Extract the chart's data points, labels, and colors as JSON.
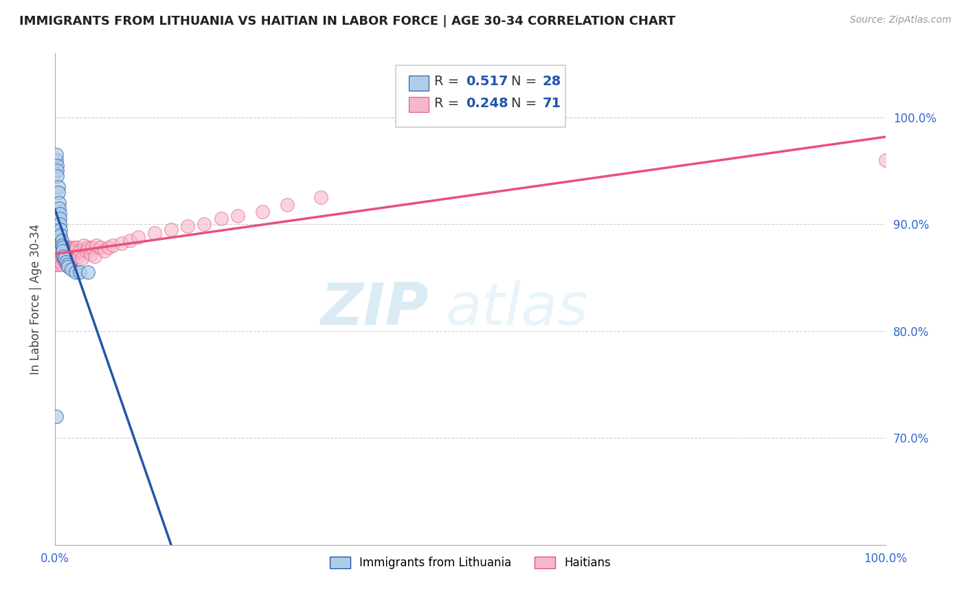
{
  "title": "IMMIGRANTS FROM LITHUANIA VS HAITIAN IN LABOR FORCE | AGE 30-34 CORRELATION CHART",
  "source": "Source: ZipAtlas.com",
  "ylabel": "In Labor Force | Age 30-34",
  "legend_label_1": "Immigrants from Lithuania",
  "legend_label_2": "Haitians",
  "r1": 0.517,
  "n1": 28,
  "r2": 0.248,
  "n2": 71,
  "color1": "#aecde8",
  "color2": "#f5b8cb",
  "line_color1": "#2255aa",
  "line_color2": "#e8507a",
  "background_color": "#ffffff",
  "grid_color": "#cccccc",
  "title_color": "#222222",
  "source_color": "#999999",
  "r_color": "#2255aa",
  "n_color": "#2255aa",
  "xlim": [
    0.0,
    1.0
  ],
  "ylim": [
    0.6,
    1.06
  ],
  "xtick_labels": [
    "0.0%",
    "",
    "",
    "",
    "",
    "100.0%"
  ],
  "xtick_vals": [
    0.0,
    0.2,
    0.4,
    0.6,
    0.8,
    1.0
  ],
  "ytick_right_labels": [
    "100.0%",
    "90.0%",
    "80.0%",
    "70.0%"
  ],
  "ytick_right_vals": [
    1.0,
    0.9,
    0.8,
    0.7
  ],
  "lithuania_x": [
    0.002,
    0.002,
    0.003,
    0.003,
    0.003,
    0.004,
    0.004,
    0.005,
    0.005,
    0.006,
    0.006,
    0.006,
    0.007,
    0.007,
    0.008,
    0.008,
    0.009,
    0.009,
    0.01,
    0.012,
    0.013,
    0.015,
    0.016,
    0.02,
    0.025,
    0.03,
    0.04,
    0.002
  ],
  "lithuania_y": [
    0.96,
    0.965,
    0.955,
    0.95,
    0.945,
    0.935,
    0.93,
    0.92,
    0.915,
    0.91,
    0.905,
    0.9,
    0.895,
    0.89,
    0.885,
    0.88,
    0.878,
    0.875,
    0.87,
    0.868,
    0.865,
    0.862,
    0.86,
    0.858,
    0.855,
    0.855,
    0.855,
    0.72
  ],
  "haitian_x": [
    0.001,
    0.001,
    0.002,
    0.002,
    0.002,
    0.003,
    0.003,
    0.004,
    0.004,
    0.004,
    0.005,
    0.005,
    0.006,
    0.006,
    0.007,
    0.007,
    0.008,
    0.008,
    0.009,
    0.009,
    0.01,
    0.01,
    0.011,
    0.011,
    0.012,
    0.012,
    0.013,
    0.013,
    0.014,
    0.015,
    0.015,
    0.016,
    0.016,
    0.017,
    0.018,
    0.018,
    0.019,
    0.02,
    0.021,
    0.022,
    0.023,
    0.024,
    0.025,
    0.026,
    0.028,
    0.03,
    0.032,
    0.035,
    0.038,
    0.04,
    0.043,
    0.045,
    0.048,
    0.05,
    0.055,
    0.06,
    0.065,
    0.07,
    0.08,
    0.09,
    0.1,
    0.12,
    0.14,
    0.16,
    0.18,
    0.2,
    0.22,
    0.25,
    0.28,
    0.32,
    1.0
  ],
  "haitian_y": [
    0.87,
    0.865,
    0.875,
    0.868,
    0.862,
    0.88,
    0.872,
    0.878,
    0.87,
    0.862,
    0.878,
    0.87,
    0.872,
    0.865,
    0.882,
    0.875,
    0.87,
    0.862,
    0.88,
    0.872,
    0.875,
    0.868,
    0.878,
    0.87,
    0.865,
    0.875,
    0.872,
    0.868,
    0.878,
    0.87,
    0.878,
    0.865,
    0.875,
    0.87,
    0.878,
    0.862,
    0.875,
    0.87,
    0.875,
    0.868,
    0.872,
    0.878,
    0.875,
    0.878,
    0.87,
    0.875,
    0.868,
    0.88,
    0.875,
    0.878,
    0.872,
    0.878,
    0.87,
    0.88,
    0.878,
    0.875,
    0.878,
    0.88,
    0.882,
    0.885,
    0.888,
    0.892,
    0.895,
    0.898,
    0.9,
    0.905,
    0.908,
    0.912,
    0.918,
    0.925,
    0.96
  ],
  "watermark_text": "ZIPatlas",
  "watermark_color": "#cce8f5",
  "watermark_zip_color": "#b8d8ea",
  "watermark_atlas_color": "#cce8f5"
}
